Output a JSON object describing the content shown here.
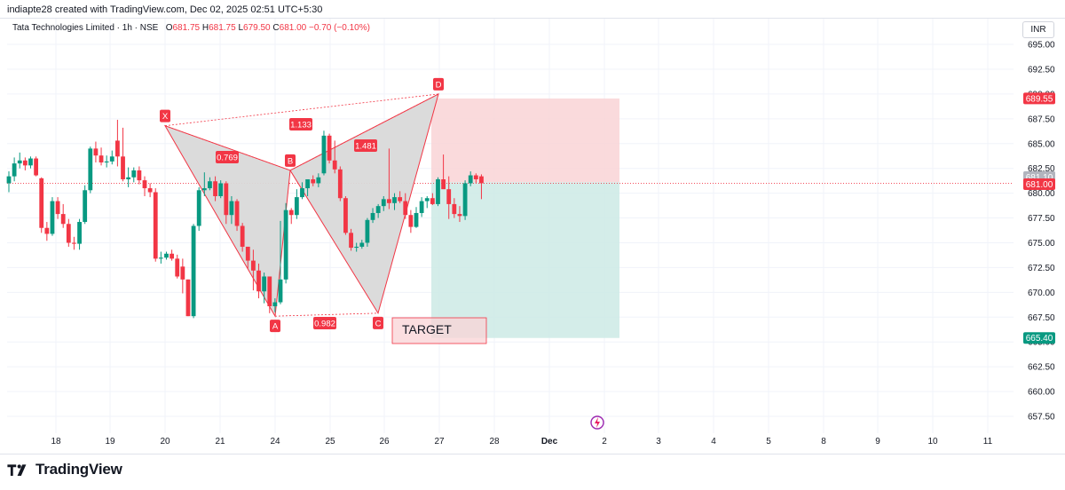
{
  "header": {
    "caption": "indiapte28 created with TradingView.com, Dec 02, 2025 02:51 UTC+5:30"
  },
  "legend": {
    "symbol": "Tata Technologies Limited · 1h · NSE",
    "o_label": "O",
    "o_value": "681.75",
    "h_label": "H",
    "h_value": "681.75",
    "l_label": "L",
    "l_value": "679.50",
    "c_label": "C",
    "c_value": "681.00",
    "change": "−0.70 (−0.10%)"
  },
  "currency": "INR",
  "brand": {
    "name": "TradingView"
  },
  "colors": {
    "up": "#089981",
    "down": "#f23645",
    "pattern_fill": "#d9d9d9",
    "pattern_line": "#f23645",
    "stop_zone": "#f9d3d6",
    "target_zone": "#cdeae5",
    "label_bg": "#f23645",
    "target_price_bg": "#089981"
  },
  "chart_data": {
    "type": "candlestick",
    "interval": "1h",
    "x_tick_labels": [
      "18",
      "19",
      "20",
      "21",
      "24",
      "25",
      "26",
      "27",
      "28",
      "Dec",
      "2",
      "3",
      "4",
      "5",
      "8",
      "9",
      "10",
      "11"
    ],
    "y_tick_labels": [
      "695.00",
      "692.50",
      "690.00",
      "687.50",
      "685.00",
      "682.50",
      "680.00",
      "677.50",
      "675.00",
      "672.50",
      "670.00",
      "667.50",
      "665.00",
      "662.50",
      "660.00",
      "657.50"
    ],
    "ylim": [
      655.8,
      697.6
    ],
    "price_labels": [
      {
        "value": "689.55",
        "style": "stop"
      },
      {
        "value": "681.10",
        "style": "grey"
      },
      {
        "value": "681.00",
        "style": "last"
      },
      {
        "value": "665.40",
        "style": "target"
      }
    ],
    "last_price": 681.0,
    "candles": [
      [
        681.0,
        682.2,
        680.1,
        681.7
      ],
      [
        681.7,
        683.6,
        681.2,
        683.0
      ],
      [
        683.0,
        684.1,
        682.5,
        683.3
      ],
      [
        683.3,
        683.6,
        682.3,
        682.8
      ],
      [
        682.8,
        683.7,
        682.5,
        683.5
      ],
      [
        683.5,
        683.7,
        681.7,
        681.8
      ],
      [
        681.5,
        681.6,
        676.0,
        676.5
      ],
      [
        676.5,
        677.1,
        675.2,
        675.9
      ],
      [
        675.9,
        679.6,
        675.7,
        679.2
      ],
      [
        679.2,
        679.6,
        677.4,
        677.9
      ],
      [
        677.9,
        678.9,
        676.5,
        676.9
      ],
      [
        676.9,
        677.4,
        674.6,
        675.0
      ],
      [
        675.0,
        675.6,
        674.3,
        674.9
      ],
      [
        674.9,
        677.4,
        674.3,
        677.1
      ],
      [
        677.1,
        680.8,
        676.9,
        680.3
      ],
      [
        680.3,
        684.7,
        680.0,
        684.5
      ],
      [
        684.5,
        685.2,
        683.1,
        683.8
      ],
      [
        683.8,
        684.6,
        682.8,
        683.1
      ],
      [
        683.1,
        683.8,
        682.6,
        683.2
      ],
      [
        683.2,
        684.3,
        682.9,
        683.7
      ],
      [
        685.3,
        687.4,
        682.7,
        683.7
      ],
      [
        683.7,
        686.6,
        681.2,
        681.4
      ],
      [
        681.4,
        682.6,
        680.6,
        681.6
      ],
      [
        681.6,
        682.6,
        681.1,
        682.3
      ],
      [
        682.3,
        682.7,
        680.9,
        681.3
      ],
      [
        681.3,
        681.7,
        679.7,
        680.5
      ],
      [
        680.5,
        681.0,
        679.6,
        680.1
      ],
      [
        680.1,
        680.5,
        673.1,
        673.4
      ],
      [
        673.4,
        674.1,
        672.9,
        673.5
      ],
      [
        673.5,
        674.1,
        673.3,
        673.9
      ],
      [
        673.9,
        674.3,
        673.2,
        673.4
      ],
      [
        673.4,
        673.8,
        671.4,
        671.6
      ],
      [
        672.6,
        673.4,
        669.9,
        671.3
      ],
      [
        671.3,
        671.3,
        667.6,
        667.6
      ],
      [
        667.6,
        676.9,
        667.4,
        676.7
      ],
      [
        676.7,
        680.6,
        676.2,
        680.3
      ],
      [
        680.3,
        682.1,
        679.7,
        680.5
      ],
      [
        680.5,
        681.6,
        680.3,
        681.2
      ],
      [
        681.2,
        681.7,
        679.2,
        679.7
      ],
      [
        679.7,
        681.3,
        679.5,
        681.0
      ],
      [
        681.0,
        681.2,
        676.9,
        677.8
      ],
      [
        677.8,
        679.7,
        676.9,
        679.2
      ],
      [
        679.2,
        679.4,
        676.2,
        676.7
      ],
      [
        676.7,
        677.0,
        674.1,
        674.6
      ],
      [
        674.6,
        674.6,
        672.4,
        673.2
      ],
      [
        673.2,
        674.3,
        670.2,
        672.2
      ],
      [
        672.2,
        672.9,
        669.4,
        670.1
      ],
      [
        670.1,
        672.0,
        668.9,
        671.6
      ],
      [
        671.6,
        671.6,
        667.9,
        668.6
      ],
      [
        668.6,
        669.4,
        668.0,
        669.0
      ],
      [
        669.0,
        677.2,
        668.8,
        671.3
      ],
      [
        671.3,
        679.0,
        670.9,
        678.3
      ],
      [
        678.3,
        678.5,
        676.9,
        677.8
      ],
      [
        677.8,
        680.4,
        677.4,
        679.6
      ],
      [
        679.6,
        681.1,
        679.4,
        680.5
      ],
      [
        680.5,
        681.4,
        679.7,
        681.4
      ],
      [
        681.4,
        681.8,
        680.7,
        681.0
      ],
      [
        681.0,
        682.0,
        680.6,
        681.6
      ],
      [
        682.0,
        686.3,
        681.8,
        685.8
      ],
      [
        685.8,
        686.0,
        683.0,
        683.3
      ],
      [
        683.3,
        685.3,
        682.0,
        682.4
      ],
      [
        682.4,
        682.7,
        679.2,
        679.5
      ],
      [
        679.5,
        679.7,
        675.8,
        676.0
      ],
      [
        676.0,
        676.4,
        674.2,
        674.5
      ],
      [
        674.5,
        675.0,
        674.1,
        674.6
      ],
      [
        674.6,
        675.3,
        674.4,
        675.0
      ],
      [
        675.0,
        677.5,
        674.6,
        677.3
      ],
      [
        677.3,
        678.5,
        677.0,
        678.0
      ],
      [
        678.0,
        678.9,
        677.5,
        678.7
      ],
      [
        678.7,
        679.7,
        678.2,
        679.4
      ],
      [
        679.4,
        684.5,
        678.4,
        679.0
      ],
      [
        679.0,
        680.0,
        678.3,
        679.6
      ],
      [
        679.6,
        680.2,
        679.0,
        679.2
      ],
      [
        679.2,
        680.0,
        677.4,
        677.8
      ],
      [
        677.8,
        678.3,
        676.0,
        676.6
      ],
      [
        676.6,
        678.6,
        676.5,
        678.0
      ],
      [
        678.0,
        679.6,
        677.6,
        679.2
      ],
      [
        679.2,
        679.7,
        678.5,
        679.5
      ],
      [
        679.5,
        680.0,
        678.8,
        678.9
      ],
      [
        678.9,
        681.6,
        678.7,
        681.4
      ],
      [
        681.4,
        683.9,
        680.7,
        680.4
      ],
      [
        680.4,
        681.7,
        677.4,
        678.9
      ],
      [
        678.9,
        679.5,
        677.5,
        677.9
      ],
      [
        677.9,
        678.7,
        677.1,
        677.7
      ],
      [
        677.7,
        681.3,
        677.3,
        681.0
      ],
      [
        681.0,
        682.2,
        680.7,
        681.8
      ],
      [
        681.8,
        682.0,
        681.0,
        681.4
      ],
      [
        681.7,
        681.9,
        679.4,
        681.0
      ]
    ],
    "harmonic_pattern": {
      "points": [
        {
          "label": "X",
          "value": 686.8
        },
        {
          "label": "A",
          "value": 667.6
        },
        {
          "label": "B",
          "value": 682.3
        },
        {
          "label": "C",
          "value": 667.9
        },
        {
          "label": "D",
          "value": 690.0
        }
      ],
      "ratios": [
        "0.769",
        "1.481",
        "1.133",
        "0.982"
      ]
    },
    "position": {
      "entry": 681.1,
      "stop": 689.55,
      "target": 665.4
    },
    "annotations": [
      "TARGET"
    ]
  }
}
